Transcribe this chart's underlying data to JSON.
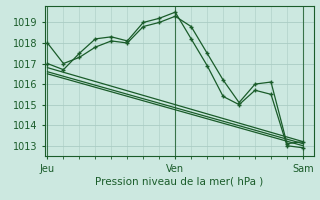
{
  "title": "Pression niveau de la mer( hPa )",
  "xlabel_ticks": [
    0,
    48,
    96
  ],
  "xlabel_labels": [
    "Jeu",
    "Ven",
    "Sam"
  ],
  "ylabel_ticks": [
    1013,
    1014,
    1015,
    1016,
    1017,
    1018,
    1019
  ],
  "ylim": [
    1012.5,
    1019.8
  ],
  "xlim": [
    -1,
    100
  ],
  "background_color": "#cce8e0",
  "grid_color": "#aaccC4",
  "line_color": "#1a5c2a",
  "lines": [
    {
      "x": [
        0,
        6,
        12,
        18,
        24,
        30,
        36,
        42,
        48,
        54,
        60,
        66,
        72,
        78,
        84,
        90,
        96
      ],
      "y": [
        1018.0,
        1017.0,
        1017.3,
        1017.8,
        1018.1,
        1018.0,
        1018.8,
        1019.0,
        1019.3,
        1018.8,
        1017.5,
        1016.2,
        1015.1,
        1016.0,
        1016.1,
        1013.1,
        1013.2
      ],
      "marker": "+"
    },
    {
      "x": [
        0,
        6,
        12,
        18,
        24,
        30,
        36,
        42,
        48,
        54,
        60,
        66,
        72,
        78,
        84,
        90,
        96
      ],
      "y": [
        1017.0,
        1016.7,
        1017.5,
        1018.2,
        1018.3,
        1018.1,
        1019.0,
        1019.2,
        1019.5,
        1018.2,
        1016.9,
        1015.4,
        1015.0,
        1015.7,
        1015.5,
        1013.0,
        1012.9
      ],
      "marker": "+"
    },
    {
      "x": [
        0,
        96
      ],
      "y": [
        1016.8,
        1013.2
      ],
      "marker": null
    },
    {
      "x": [
        0,
        96
      ],
      "y": [
        1016.6,
        1013.1
      ],
      "marker": null
    },
    {
      "x": [
        0,
        96
      ],
      "y": [
        1016.5,
        1013.0
      ],
      "marker": null
    }
  ],
  "vlines": [
    0,
    48,
    96
  ]
}
